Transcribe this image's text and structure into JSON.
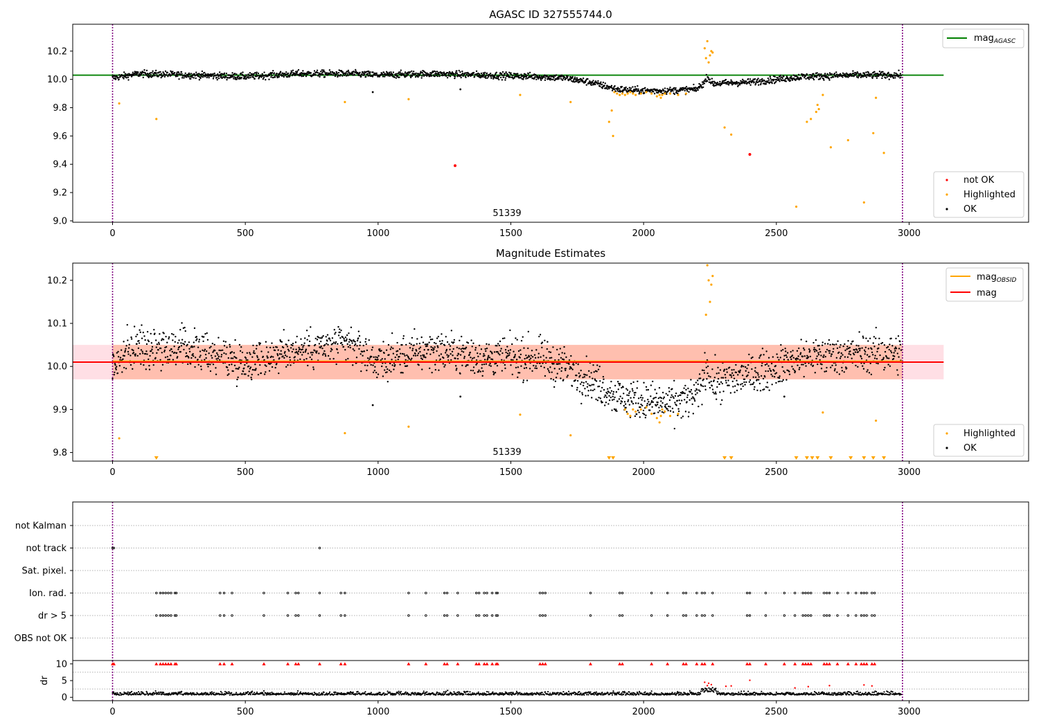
{
  "chart_data": [
    {
      "type": "scatter",
      "title": "AGASC ID 327555744.0",
      "xlim": [
        -150,
        3450
      ],
      "ylim": [
        8.99,
        10.39
      ],
      "xticks": [
        "0",
        "500",
        "1000",
        "1500",
        "2000",
        "2500",
        "3000"
      ],
      "yticks": [
        "9.0",
        "9.2",
        "9.4",
        "9.6",
        "9.8",
        "10.0",
        "10.2"
      ],
      "annotation": "51339",
      "vlines_x": [
        0,
        2975
      ],
      "hline": {
        "label": "mag_AGASC",
        "y": 10.03,
        "color": "#008000"
      },
      "legends": [
        {
          "position": "top-right",
          "entries": [
            {
              "label": "mag",
              "sub": "AGASC",
              "color": "#008000",
              "kind": "line"
            }
          ]
        },
        {
          "position": "bottom-right",
          "entries": [
            {
              "label": "not OK",
              "color": "#ff0000",
              "kind": "dot"
            },
            {
              "label": "Highlighted",
              "color": "#ffa500",
              "kind": "dot"
            },
            {
              "label": "OK",
              "color": "#000000",
              "kind": "dot"
            }
          ]
        }
      ],
      "trend": {
        "description": "OK points follow this magnitude curve (x, mag)",
        "points": [
          [
            0,
            10.01
          ],
          [
            100,
            10.04
          ],
          [
            300,
            10.03
          ],
          [
            500,
            10.02
          ],
          [
            700,
            10.04
          ],
          [
            900,
            10.04
          ],
          [
            1000,
            10.03
          ],
          [
            1200,
            10.04
          ],
          [
            1400,
            10.03
          ],
          [
            1600,
            10.02
          ],
          [
            1700,
            10.01
          ],
          [
            1800,
            9.98
          ],
          [
            1900,
            9.93
          ],
          [
            2000,
            9.92
          ],
          [
            2100,
            9.92
          ],
          [
            2200,
            9.93
          ],
          [
            2230,
            9.98
          ],
          [
            2240,
            10.02
          ],
          [
            2260,
            9.97
          ],
          [
            2400,
            9.98
          ],
          [
            2500,
            10.0
          ],
          [
            2600,
            10.02
          ],
          [
            2800,
            10.03
          ],
          [
            2970,
            10.03
          ]
        ]
      },
      "series": [
        {
          "name": "not OK",
          "color": "#ff0000",
          "x": [
            1290,
            2400
          ],
          "y": [
            9.39,
            9.47
          ]
        },
        {
          "name": "Highlighted",
          "color": "#ffa500",
          "x": [
            25,
            165,
            875,
            1115,
            1535,
            1725,
            1870,
            1880,
            1885,
            1890,
            1900,
            1910,
            1920,
            1930,
            1940,
            1950,
            1960,
            1970,
            1990,
            2010,
            2030,
            2050,
            2060,
            2065,
            2070,
            2080,
            2100,
            2130,
            2160,
            2230,
            2235,
            2240,
            2245,
            2250,
            2255,
            2260,
            2305,
            2330,
            2575,
            2615,
            2630,
            2650,
            2655,
            2660,
            2675,
            2705,
            2770,
            2830,
            2865,
            2875,
            2905
          ],
          "y": [
            9.83,
            9.72,
            9.84,
            9.86,
            9.89,
            9.84,
            9.7,
            9.78,
            9.6,
            9.91,
            9.9,
            9.89,
            9.9,
            9.89,
            9.9,
            9.91,
            9.9,
            9.89,
            9.9,
            9.91,
            9.9,
            9.88,
            9.89,
            9.87,
            9.89,
            9.9,
            9.9,
            9.89,
            9.9,
            10.22,
            10.15,
            10.27,
            10.12,
            10.17,
            10.2,
            10.19,
            9.66,
            9.61,
            9.1,
            9.7,
            9.72,
            9.77,
            9.82,
            9.79,
            9.89,
            9.52,
            9.57,
            9.13,
            9.62,
            9.87,
            9.48
          ]
        },
        {
          "name": "OK",
          "color": "#000000",
          "generated": "dense from trend, x in [0, 2970] step 1.5",
          "extra_x": [
            980,
            1310
          ],
          "extra_y": [
            9.91,
            9.93
          ]
        }
      ]
    },
    {
      "type": "scatter",
      "title": "Magnitude Estimates",
      "xlim": [
        -150,
        3450
      ],
      "ylim": [
        9.78,
        10.24
      ],
      "xticks": [
        "0",
        "500",
        "1000",
        "1500",
        "2000",
        "2500",
        "3000"
      ],
      "yticks": [
        "9.8",
        "9.9",
        "10.0",
        "10.1",
        "10.2"
      ],
      "annotation": "51339",
      "vlines_x": [
        0,
        2975
      ],
      "bands": [
        {
          "name": "mag band",
          "x": [
            -150,
            3130
          ],
          "y": [
            9.97,
            10.05
          ],
          "color": "#ffc0cb"
        },
        {
          "name": "mag_OBSID band",
          "x": [
            0,
            2975
          ],
          "y": [
            9.97,
            10.05
          ],
          "color": "#ffa07a"
        }
      ],
      "hlines": [
        {
          "label": "mag_OBSID",
          "y": 10.012,
          "x": [
            0,
            2975
          ],
          "color": "#ffa500"
        },
        {
          "label": "mag",
          "y": 10.01,
          "x": [
            -150,
            3130
          ],
          "color": "#ff0000"
        }
      ],
      "legends": [
        {
          "position": "top-right",
          "entries": [
            {
              "label": "mag",
              "sub": "OBSID",
              "color": "#ffa500",
              "kind": "line"
            },
            {
              "label": "mag",
              "color": "#ff0000",
              "kind": "line"
            }
          ]
        },
        {
          "position": "bottom-right",
          "entries": [
            {
              "label": "Highlighted",
              "color": "#ffa500",
              "kind": "dot"
            },
            {
              "label": "OK",
              "color": "#000000",
              "kind": "dot"
            }
          ]
        }
      ],
      "trend": {
        "points": [
          [
            0,
            10.0
          ],
          [
            100,
            10.05
          ],
          [
            300,
            10.04
          ],
          [
            500,
            10.01
          ],
          [
            700,
            10.04
          ],
          [
            900,
            10.05
          ],
          [
            1000,
            10.01
          ],
          [
            1200,
            10.04
          ],
          [
            1400,
            10.02
          ],
          [
            1600,
            10.02
          ],
          [
            1700,
            10.0
          ],
          [
            1800,
            9.97
          ],
          [
            1900,
            9.93
          ],
          [
            2000,
            9.92
          ],
          [
            2100,
            9.91
          ],
          [
            2200,
            9.93
          ],
          [
            2230,
            9.98
          ],
          [
            2240,
            10.01
          ],
          [
            2260,
            9.96
          ],
          [
            2400,
            9.98
          ],
          [
            2500,
            10.0
          ],
          [
            2600,
            10.02
          ],
          [
            2800,
            10.03
          ],
          [
            2970,
            10.03
          ]
        ]
      },
      "series": [
        {
          "name": "Highlighted",
          "color": "#ffa500",
          "x": [
            25,
            875,
            1115,
            1535,
            1725,
            1930,
            1940,
            1950,
            1960,
            1970,
            1990,
            2010,
            2030,
            2050,
            2060,
            2065,
            2070,
            2080,
            2100,
            2130,
            2235,
            2240,
            2245,
            2250,
            2255,
            2260,
            2675,
            2875
          ],
          "y": [
            9.833,
            9.845,
            9.86,
            9.888,
            9.84,
            9.9,
            9.89,
            9.885,
            9.9,
            9.895,
            9.9,
            9.905,
            9.89,
            9.88,
            9.87,
            9.885,
            9.9,
            9.895,
            9.885,
            9.89,
            10.12,
            10.235,
            10.2,
            10.15,
            10.19,
            10.21,
            9.893,
            9.874
          ]
        },
        {
          "name": "Highlighted (below ylim)",
          "color": "#ffa500",
          "marker": "triangle-down",
          "x": [
            165,
            1870,
            1885,
            2305,
            2330,
            2575,
            2615,
            2635,
            2655,
            2705,
            2780,
            2830,
            2865,
            2905
          ],
          "y_at": "bottom"
        },
        {
          "name": "OK",
          "color": "#000000",
          "generated": "dense from trend",
          "extra_x": [
            980,
            1310,
            2530
          ],
          "extra_y": [
            9.91,
            9.93,
            9.93
          ]
        }
      ]
    },
    {
      "type": "scatter",
      "xlim": [
        -150,
        3450
      ],
      "categories": [
        "not Kalman",
        "not track",
        "Sat. pixel.",
        "Ion. rad.",
        "dr > 5",
        "OBS not OK"
      ],
      "vlines_x": [
        0,
        2975
      ],
      "series": [
        {
          "name": "not track",
          "x": [
            0,
            5,
            780
          ]
        },
        {
          "name": "Ion. rad.",
          "x": [
            165,
            180,
            190,
            200,
            210,
            220,
            235,
            240,
            405,
            420,
            450,
            570,
            660,
            690,
            700,
            780,
            860,
            875,
            1115,
            1180,
            1250,
            1260,
            1300,
            1370,
            1380,
            1400,
            1410,
            1430,
            1445,
            1450,
            1610,
            1620,
            1630,
            1800,
            1910,
            1920,
            2030,
            2090,
            2150,
            2160,
            2200,
            2220,
            2230,
            2260,
            2390,
            2400,
            2460,
            2530,
            2570,
            2600,
            2610,
            2620,
            2630,
            2680,
            2690,
            2700,
            2730,
            2770,
            2800,
            2820,
            2830,
            2840,
            2860,
            2870
          ]
        },
        {
          "name": "dr > 5",
          "x": [
            165,
            180,
            190,
            200,
            210,
            220,
            235,
            240,
            405,
            420,
            450,
            570,
            660,
            690,
            700,
            780,
            860,
            875,
            1115,
            1180,
            1250,
            1260,
            1300,
            1370,
            1380,
            1400,
            1410,
            1430,
            1445,
            1450,
            1610,
            1620,
            1630,
            1800,
            1910,
            1920,
            2030,
            2090,
            2150,
            2160,
            2200,
            2220,
            2230,
            2260,
            2390,
            2400,
            2460,
            2530,
            2570,
            2600,
            2610,
            2620,
            2630,
            2680,
            2690,
            2700,
            2730,
            2770,
            2800,
            2820,
            2830,
            2840,
            2860,
            2870
          ]
        }
      ]
    },
    {
      "type": "scatter",
      "ylabel": "dr",
      "xlim": [
        -150,
        3450
      ],
      "ylim": [
        -1,
        11
      ],
      "xticks": [
        "0",
        "500",
        "1000",
        "1500",
        "2000",
        "2500",
        "3000"
      ],
      "yticks": [
        "0",
        "5",
        "10"
      ],
      "vlines_x": [
        0,
        2975
      ],
      "series": [
        {
          "name": "dr > 5 (clipped at 10)",
          "color": "#ff0000",
          "marker": "triangle-up",
          "y": 10,
          "x": [
            0,
            5,
            165,
            180,
            190,
            200,
            210,
            220,
            235,
            240,
            405,
            420,
            450,
            570,
            660,
            690,
            700,
            780,
            860,
            875,
            1115,
            1180,
            1250,
            1260,
            1300,
            1370,
            1380,
            1400,
            1410,
            1430,
            1445,
            1450,
            1610,
            1620,
            1630,
            1800,
            1910,
            1920,
            2030,
            2090,
            2150,
            2160,
            2200,
            2220,
            2230,
            2260,
            2390,
            2400,
            2460,
            2530,
            2570,
            2600,
            2610,
            2620,
            2630,
            2680,
            2690,
            2700,
            2730,
            2770,
            2800,
            2820,
            2830,
            2840,
            2860,
            2870
          ]
        },
        {
          "name": "not OK dr",
          "color": "#ff0000",
          "x": [
            2230,
            2240,
            2245,
            2255,
            2310,
            2330,
            2400,
            2570,
            2620,
            2700,
            2830,
            2860
          ],
          "y": [
            4.5,
            3.5,
            4.2,
            3.8,
            3.3,
            3.4,
            5.1,
            2.8,
            3.2,
            3.5,
            3.7,
            3.4
          ]
        },
        {
          "name": "dr",
          "color": "#000000",
          "generated": "dense, typical 0.3-1.5"
        }
      ]
    }
  ]
}
